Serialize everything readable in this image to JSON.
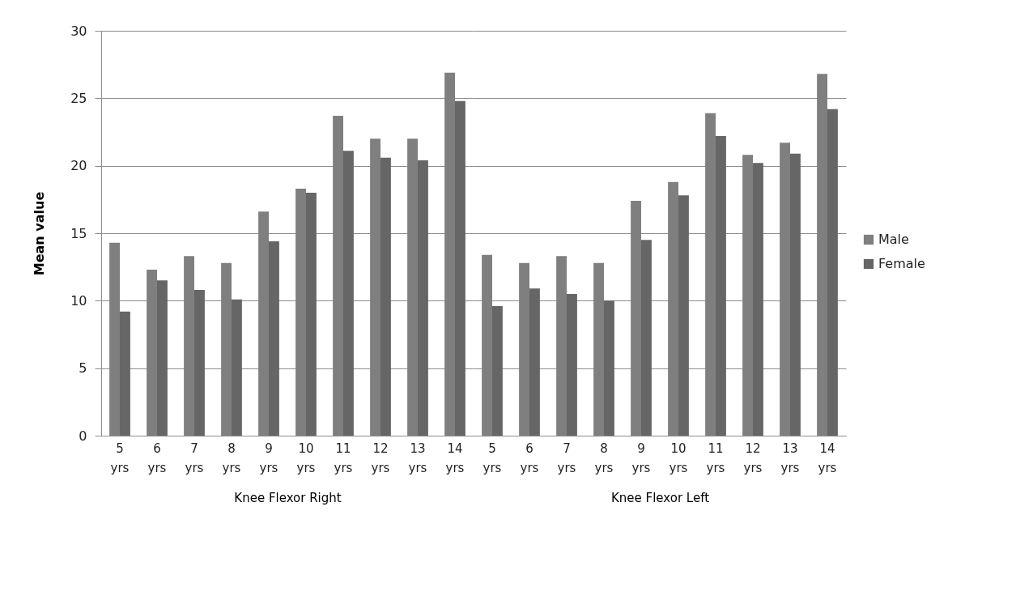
{
  "chart_data": [
    {
      "type": "bar",
      "xlabel": "Knee Flexor Right",
      "ylabel": "Mean value",
      "categories": [
        "5 yrs",
        "6 yrs",
        "7 yrs",
        "8 yrs",
        "9 yrs",
        "10 yrs",
        "11 yrs",
        "12 yrs",
        "13 yrs",
        "14 yrs"
      ],
      "series": [
        {
          "color": "#7f7f7f",
          "values": [
            14.3,
            12.3,
            13.3,
            12.8,
            16.6,
            18.3,
            23.7,
            22.0,
            22.0,
            26.9
          ]
        },
        {
          "color": "#666666",
          "values": [
            9.2,
            11.5,
            10.8,
            10.1,
            14.4,
            18.0,
            21.1,
            20.6,
            20.4,
            24.8
          ]
        }
      ],
      "ylim": [
        0,
        30
      ],
      "yticks": [
        0,
        5,
        10,
        15,
        20,
        25,
        30
      ],
      "grid": "y",
      "legend": false
    },
    {
      "type": "bar",
      "xlabel": "Knee Flexor Left",
      "categories": [
        "5 yrs",
        "6 yrs",
        "7 yrs",
        "8 yrs",
        "9 yrs",
        "10 yrs",
        "11 yrs",
        "12 yrs",
        "13 yrs",
        "14 yrs"
      ],
      "series": [
        {
          "name": "Male",
          "color": "#7f7f7f",
          "values": [
            13.4,
            12.8,
            13.3,
            12.8,
            17.4,
            18.8,
            23.9,
            20.8,
            21.7,
            26.8
          ]
        },
        {
          "name": "Female",
          "color": "#666666",
          "values": [
            9.6,
            10.9,
            10.5,
            10.0,
            14.5,
            17.8,
            22.2,
            20.2,
            20.9,
            24.2
          ]
        }
      ],
      "ylim": [
        0,
        30
      ],
      "yticks": [
        0,
        5,
        10,
        15,
        20,
        25,
        30
      ],
      "grid": "y",
      "legend": "right",
      "tick_labels": "x"
    }
  ]
}
